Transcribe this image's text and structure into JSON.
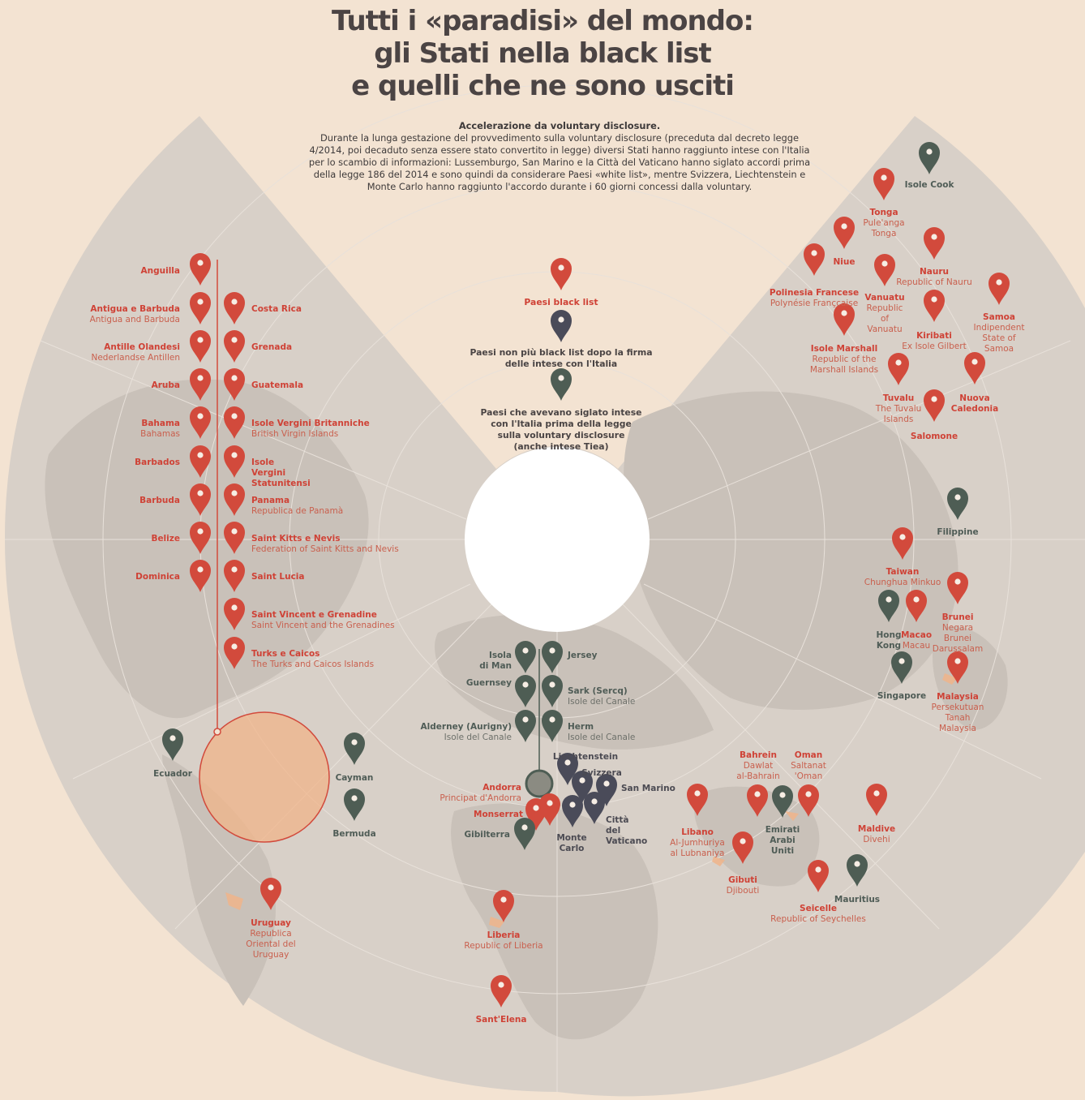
{
  "title": {
    "line1": "Tutti i «paradisi» del mondo:",
    "line2": "gli Stati nella black list",
    "line3": "e quelli che ne sono usciti"
  },
  "intro": {
    "heading": "Accelerazione da voluntary disclosure.",
    "text": "Durante la lunga gestazione del provvedimento sulla voluntary disclosure (preceduta dal decreto legge 4/2014, poi decaduto senza essere stato convertito in legge) diversi Stati hanno raggiunto intese con l'Italia per lo scambio di informazioni: Lussemburgo, San Marino e la Città del Vaticano hanno siglato accordi prima della legge 186 del 2014 e sono quindi da considerare Paesi «white list», mentre Svizzera, Liechtenstein e Monte Carlo hanno raggiunto l'accordo durante i 60 giorni concessi dalla voluntary."
  },
  "legend": {
    "black_list": "Paesi black list",
    "removed_line1": "Paesi non più black list dopo la firma",
    "removed_line2": "delle intese con l'Italia",
    "earlier_line1": "Paesi che avevano siglato intese",
    "earlier_line2": "con l'Italia prima della legge",
    "earlier_line3": "sulla voluntary  disclosure",
    "earlier_line4": "(anche intese Tiea)"
  },
  "colors": {
    "black_list": "#d24a3c",
    "removed": "#4a4b59",
    "earlier": "#4e5d54",
    "background": "#f3e3d2",
    "map": "#d9d1c9"
  },
  "pins": [
    {
      "id": "anguilla",
      "name": "Anguilla",
      "sub": "",
      "status": "black_list"
    },
    {
      "id": "antigua",
      "name": "Antigua e Barbuda",
      "sub": "Antigua and Barbuda",
      "status": "black_list"
    },
    {
      "id": "antille",
      "name": "Antille Olandesi",
      "sub": "Nederlandse Antillen",
      "status": "black_list"
    },
    {
      "id": "aruba",
      "name": "Aruba",
      "sub": "",
      "status": "black_list"
    },
    {
      "id": "bahama",
      "name": "Bahama",
      "sub": "Bahamas",
      "status": "black_list"
    },
    {
      "id": "barbados",
      "name": "Barbados",
      "sub": "",
      "status": "black_list"
    },
    {
      "id": "barbuda",
      "name": "Barbuda",
      "sub": "",
      "status": "black_list"
    },
    {
      "id": "belize",
      "name": "Belize",
      "sub": "",
      "status": "black_list"
    },
    {
      "id": "dominica",
      "name": "Dominica",
      "sub": "",
      "status": "black_list"
    },
    {
      "id": "costarica",
      "name": "Costa Rica",
      "sub": "",
      "status": "black_list"
    },
    {
      "id": "grenada",
      "name": "Grenada",
      "sub": "",
      "status": "black_list"
    },
    {
      "id": "guatemala",
      "name": "Guatemala",
      "sub": "",
      "status": "black_list"
    },
    {
      "id": "bvi",
      "name": "Isole Vergini Britanniche",
      "sub": "British Virgin Islands",
      "status": "black_list"
    },
    {
      "id": "usvi",
      "name": "Isole Vergini Statunitensi",
      "sub": "",
      "status": "black_list"
    },
    {
      "id": "panama",
      "name": "Panama",
      "sub": "Republica de Panamà",
      "status": "black_list"
    },
    {
      "id": "stkitts",
      "name": "Saint Kitts e Nevis",
      "sub": "Federation of Saint Kitts and Nevis",
      "status": "black_list"
    },
    {
      "id": "stlucia",
      "name": "Saint Lucia",
      "sub": "",
      "status": "black_list"
    },
    {
      "id": "stvincent",
      "name": "Saint Vincent e Grenadine",
      "sub": "Saint Vincent and the Grenadines",
      "status": "black_list"
    },
    {
      "id": "turks",
      "name": "Turks e Caicos",
      "sub": "The Turks and Caicos Islands",
      "status": "black_list"
    },
    {
      "id": "ecuador",
      "name": "Ecuador",
      "sub": "",
      "status": "earlier"
    },
    {
      "id": "cayman",
      "name": "Cayman",
      "sub": "",
      "status": "earlier"
    },
    {
      "id": "bermuda",
      "name": "Bermuda",
      "sub": "",
      "status": "earlier"
    },
    {
      "id": "uruguay",
      "name": "Uruguay",
      "sub": "Republica Oriental del Uruguay",
      "status": "black_list"
    },
    {
      "id": "liberia",
      "name": "Liberia",
      "sub": "Republic of Liberia",
      "status": "black_list"
    },
    {
      "id": "santelena",
      "name": "Sant'Elena",
      "sub": "",
      "status": "black_list"
    },
    {
      "id": "isolaman",
      "name": "Isola di Man",
      "sub": "",
      "status": "earlier"
    },
    {
      "id": "guernsey",
      "name": "Guernsey",
      "sub": "",
      "status": "earlier"
    },
    {
      "id": "alderney",
      "name": "Alderney (Aurigny)",
      "sub": "Isole del Canale",
      "status": "earlier"
    },
    {
      "id": "jersey",
      "name": "Jersey",
      "sub": "",
      "status": "earlier"
    },
    {
      "id": "sark",
      "name": "Sark (Sercq)",
      "sub": "Isole del Canale",
      "status": "earlier"
    },
    {
      "id": "herm",
      "name": "Herm",
      "sub": "Isole del Canale",
      "status": "earlier"
    },
    {
      "id": "andorra",
      "name": "Andorra",
      "sub": "Principat d'Andorra",
      "status": "black_list"
    },
    {
      "id": "monserrat",
      "name": "Monserrat",
      "sub": "",
      "status": "black_list"
    },
    {
      "id": "gibilterra",
      "name": "Gibilterra",
      "sub": "",
      "status": "earlier"
    },
    {
      "id": "liechtenstein",
      "name": "Liechtenstein",
      "sub": "",
      "status": "removed"
    },
    {
      "id": "svizzera",
      "name": "Svizzera",
      "sub": "",
      "status": "removed"
    },
    {
      "id": "sanmarino",
      "name": "San Marino",
      "sub": "",
      "status": "removed"
    },
    {
      "id": "vaticano",
      "name": "Città del Vaticano",
      "sub": "",
      "status": "removed"
    },
    {
      "id": "montecarlo",
      "name": "Monte Carlo",
      "sub": "",
      "status": "removed"
    },
    {
      "id": "libano",
      "name": "Libano",
      "sub": "Al-Jumhuriya al Lubnaniya",
      "status": "black_list"
    },
    {
      "id": "bahrein",
      "name": "Bahrein",
      "sub": "Dawlat al-Bahrain",
      "status": "black_list"
    },
    {
      "id": "oman",
      "name": "Oman",
      "sub": "Saltanat 'Oman",
      "status": "black_list"
    },
    {
      "id": "emirati",
      "name": "Emirati Arabi Uniti",
      "sub": "",
      "status": "earlier"
    },
    {
      "id": "gibuti",
      "name": "Gibuti",
      "sub": "Djibouti",
      "status": "black_list"
    },
    {
      "id": "maldive",
      "name": "Maldive",
      "sub": "Divehi",
      "status": "black_list"
    },
    {
      "id": "seicelle",
      "name": "Seicelle",
      "sub": "Republic of Seychelles",
      "status": "black_list"
    },
    {
      "id": "mauritius",
      "name": "Mauritius",
      "sub": "",
      "status": "earlier"
    },
    {
      "id": "isolecook",
      "name": "Isole Cook",
      "sub": "",
      "status": "earlier"
    },
    {
      "id": "tonga",
      "name": "Tonga",
      "sub": "Pule'anga Tonga",
      "status": "black_list"
    },
    {
      "id": "niue",
      "name": "Niue",
      "sub": "",
      "status": "black_list"
    },
    {
      "id": "nauru",
      "name": "Nauru",
      "sub": "Republic of Nauru",
      "status": "black_list"
    },
    {
      "id": "polinesia",
      "name": "Polinesia Francese",
      "sub": "Polynésie Françcaise",
      "status": "black_list"
    },
    {
      "id": "vanuatu",
      "name": "Vanuatu",
      "sub": "Republic of Vanuatu",
      "status": "black_list"
    },
    {
      "id": "samoa",
      "name": "Samoa",
      "sub": "Indipendent State of Samoa",
      "status": "black_list"
    },
    {
      "id": "kiribati",
      "name": "Kiribati",
      "sub": "Ex Isole Gilbert",
      "status": "black_list"
    },
    {
      "id": "marshall",
      "name": "Isole Marshall",
      "sub": "Republic of the Marshall Islands",
      "status": "black_list"
    },
    {
      "id": "tuvalu",
      "name": "Tuvalu",
      "sub": "The Tuvalu Islands",
      "status": "black_list"
    },
    {
      "id": "nuovacaledonia",
      "name": "Nuova Caledonia",
      "sub": "",
      "status": "black_list"
    },
    {
      "id": "salomone",
      "name": "Salomone",
      "sub": "",
      "status": "black_list"
    },
    {
      "id": "filippine",
      "name": "Filippine",
      "sub": "",
      "status": "earlier"
    },
    {
      "id": "taiwan",
      "name": "Taiwan",
      "sub": "Chunghua Minkuo",
      "status": "black_list"
    },
    {
      "id": "brunei",
      "name": "Brunei",
      "sub": "Negara Brunei Darussalam",
      "status": "black_list"
    },
    {
      "id": "hongkong",
      "name": "Hong Kong",
      "sub": "",
      "status": "earlier"
    },
    {
      "id": "macao",
      "name": "Macao",
      "sub": "Macau",
      "status": "black_list"
    },
    {
      "id": "singapore",
      "name": "Singapore",
      "sub": "",
      "status": "earlier"
    },
    {
      "id": "malaysia",
      "name": "Malaysia",
      "sub": "Persekutuan Tanah Malaysia",
      "status": "black_list"
    }
  ]
}
